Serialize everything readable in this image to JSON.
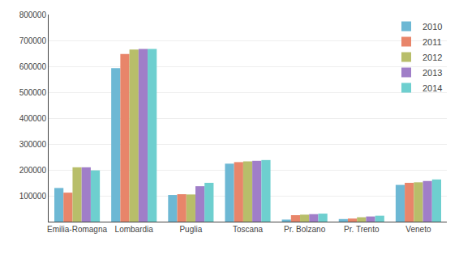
{
  "chart_data": {
    "type": "bar",
    "categories": [
      "Emilia-Romagna",
      "Lombardia",
      "Puglia",
      "Toscana",
      "Pr. Bolzano",
      "Pr. Trento",
      "Veneto"
    ],
    "series": [
      {
        "name": "2010",
        "color": "#6db8d4",
        "values": [
          130000,
          593000,
          103000,
          224000,
          8000,
          10000,
          142000
        ]
      },
      {
        "name": "2011",
        "color": "#e8856a",
        "values": [
          112000,
          648000,
          106000,
          230000,
          25000,
          12000,
          150000
        ]
      },
      {
        "name": "2012",
        "color": "#b8be6a",
        "values": [
          210000,
          665000,
          105000,
          233000,
          27000,
          17000,
          152000
        ]
      },
      {
        "name": "2013",
        "color": "#a07ec8",
        "values": [
          210000,
          667000,
          137000,
          235000,
          29000,
          20000,
          157000
        ]
      },
      {
        "name": "2014",
        "color": "#6ecfcf",
        "values": [
          198000,
          667000,
          150000,
          238000,
          31000,
          23000,
          163000
        ]
      }
    ],
    "ylim": [
      0,
      800000
    ],
    "yticks": [
      100000,
      200000,
      300000,
      400000,
      500000,
      600000,
      700000,
      800000
    ],
    "grid": true,
    "legend": "upper right"
  }
}
